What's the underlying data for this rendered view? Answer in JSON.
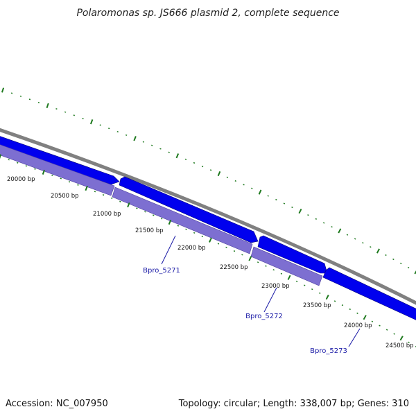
{
  "title": "Polaromonas sp. JS666 plasmid 2, complete sequence",
  "footer": {
    "accession": "Accession: NC_007950",
    "summary": "Topology: circular; Length: 338,007 bp; Genes: 310"
  },
  "colors": {
    "backbone": "#808080",
    "forward_gene": "#0000ee",
    "reverse_track": "#7d6fd1",
    "tick": "#1f7a1f",
    "gene_label": "#1a1aa6"
  },
  "bp_labels": [
    "20000 bp",
    "20500 bp",
    "21000 bp",
    "21500 bp",
    "22000 bp",
    "22500 bp",
    "23000 bp",
    "23500 bp",
    "24000 bp",
    "24500 bp"
  ],
  "genes": [
    {
      "label": "Bpro_5271",
      "strand": "forward"
    },
    {
      "label": "Bpro_5272",
      "strand": "forward"
    },
    {
      "label": "Bpro_5273",
      "strand": "forward"
    }
  ]
}
